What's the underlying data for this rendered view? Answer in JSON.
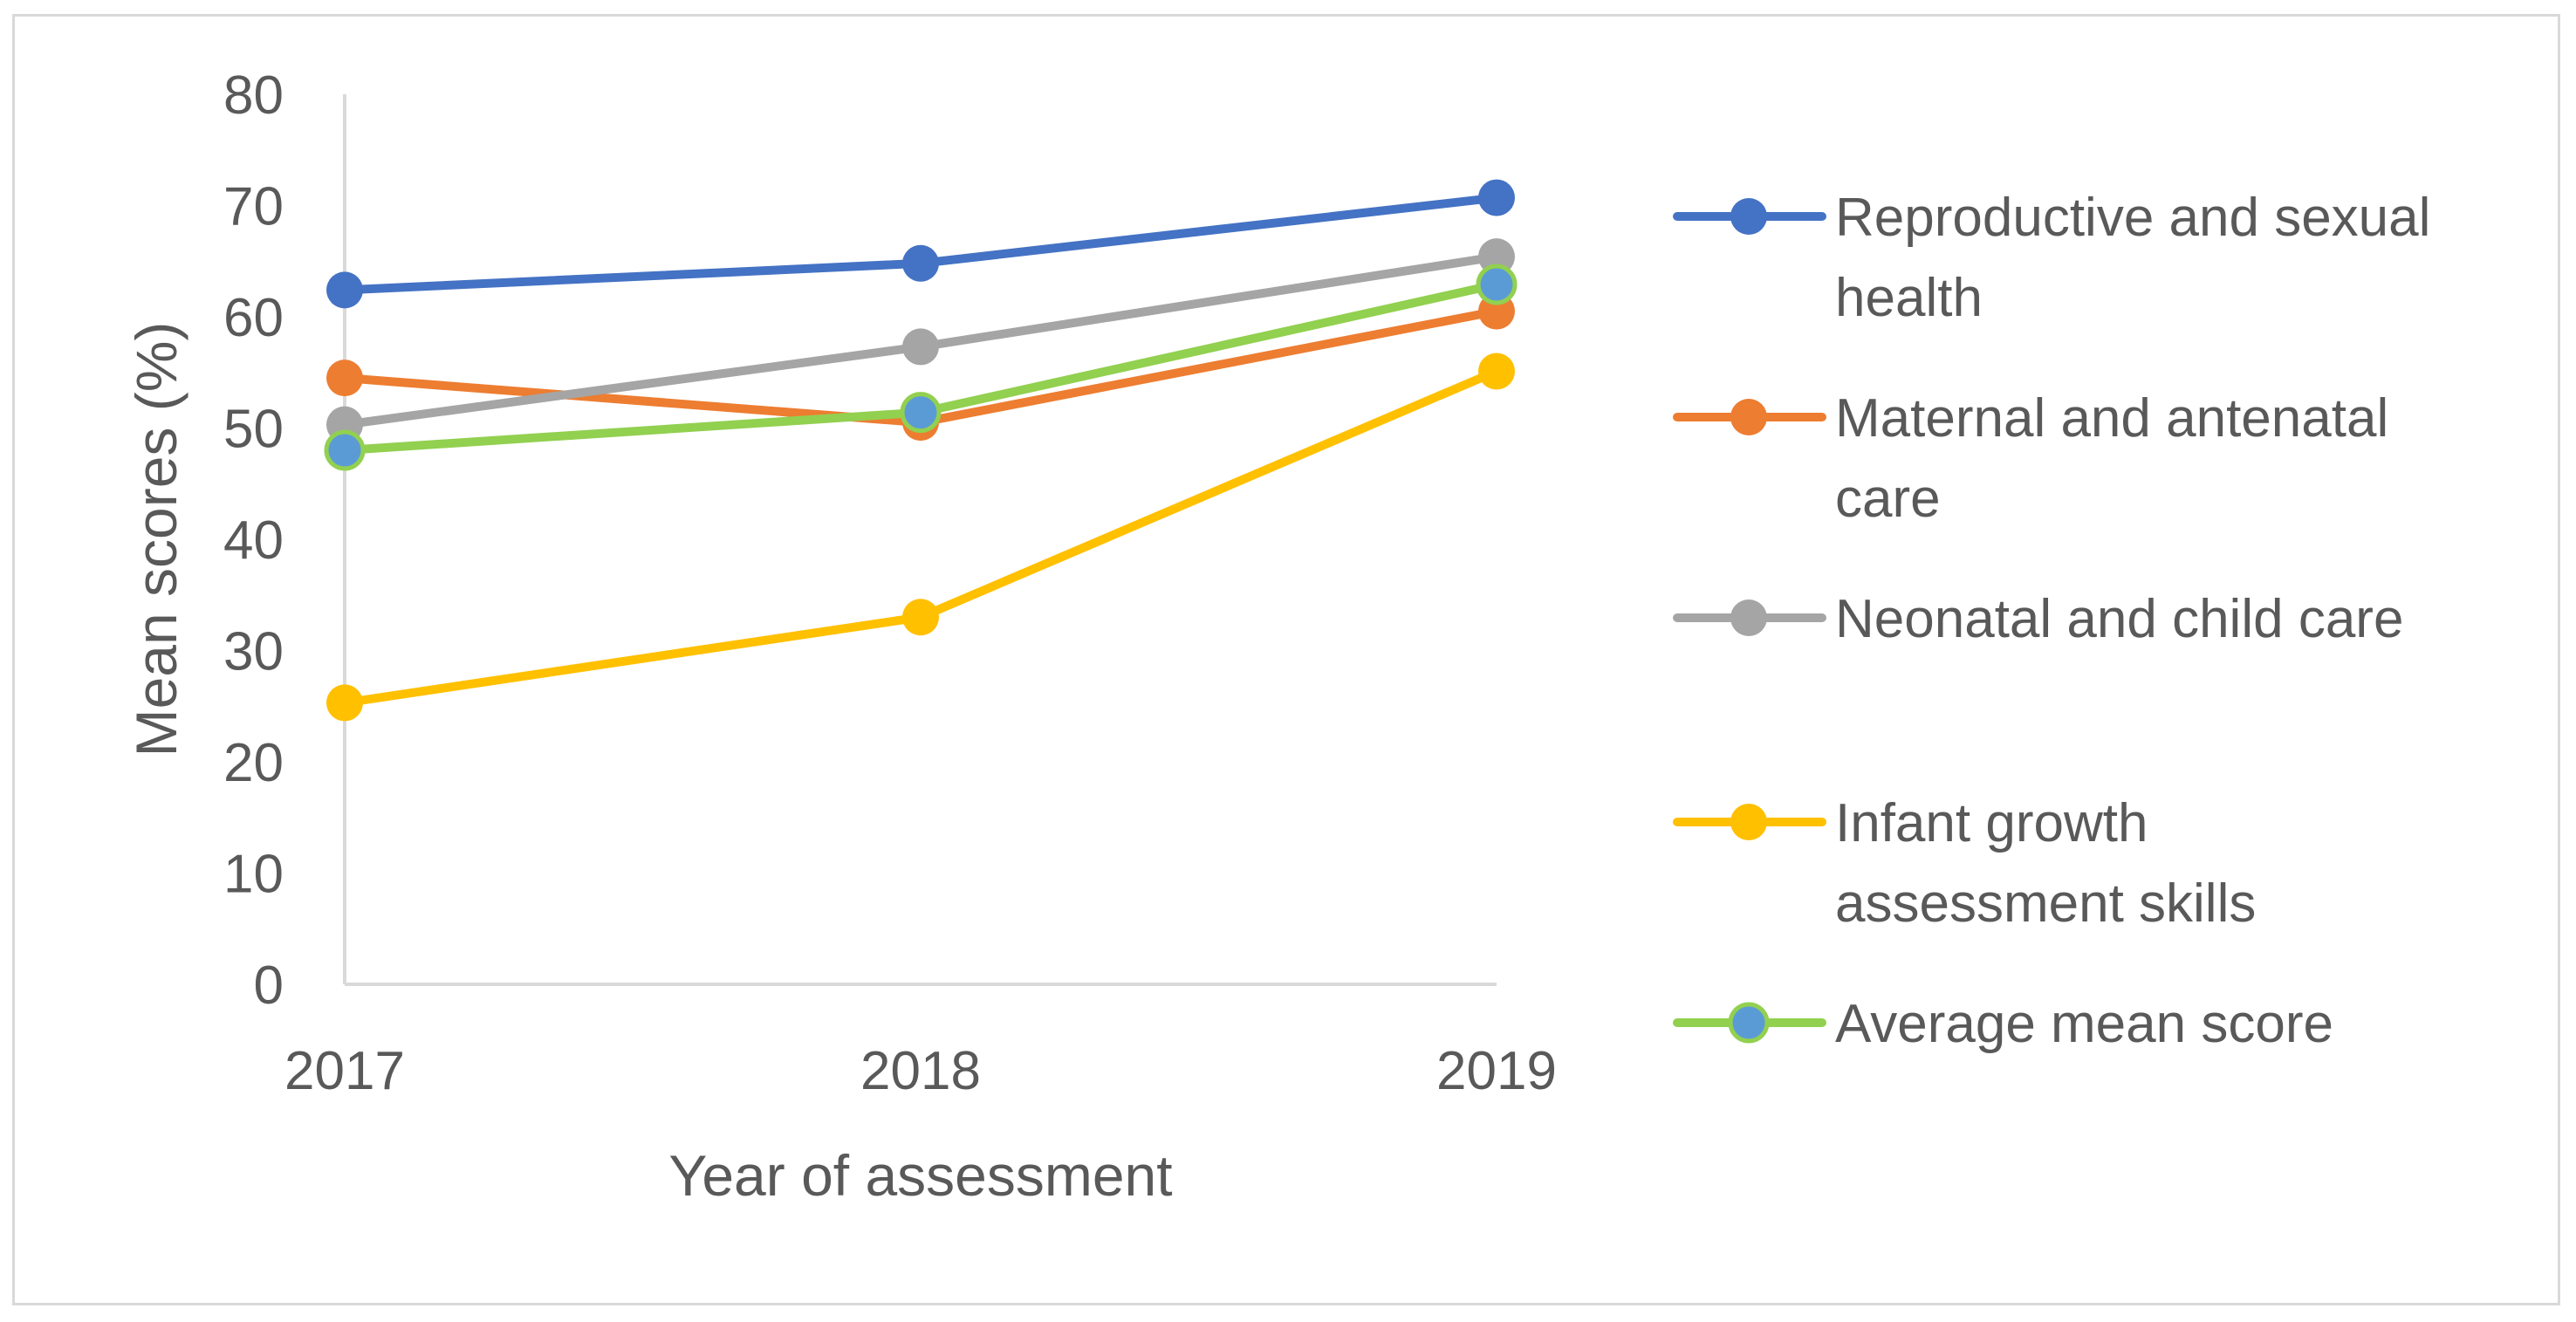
{
  "chart_data": {
    "type": "line",
    "title": "",
    "xlabel": "Year of assessment",
    "ylabel": "Mean scores (%)",
    "ylim": [
      0,
      80
    ],
    "yticks": [
      "0",
      "10",
      "20",
      "30",
      "40",
      "50",
      "60",
      "70",
      "80"
    ],
    "categories": [
      "2017",
      "2018",
      "2019"
    ],
    "grid": false,
    "legend_position": "right",
    "series": [
      {
        "name": "Reproductive and sexual health",
        "legend_lines": [
          "Reproductive and sexual",
          "health"
        ],
        "color": "#4472C4",
        "marker_color": "#4472C4",
        "values": [
          62.4,
          64.8,
          70.7
        ]
      },
      {
        "name": "Maternal and antenatal care",
        "legend_lines": [
          "Maternal and antenatal",
          "care"
        ],
        "color": "#ED7D31",
        "marker_color": "#ED7D31",
        "values": [
          54.5,
          50.5,
          60.5
        ]
      },
      {
        "name": "Neonatal and child care",
        "legend_lines": [
          "Neonatal and child care"
        ],
        "color": "#A5A5A5",
        "marker_color": "#A5A5A5",
        "values": [
          50.3,
          57.3,
          65.4
        ]
      },
      {
        "name": "Infant growth assessment skills",
        "legend_lines": [
          "Infant growth",
          "assessment skills"
        ],
        "color": "#FFC000",
        "marker_color": "#FFC000",
        "values": [
          25.3,
          33.0,
          55.1
        ]
      },
      {
        "name": "Average mean score",
        "legend_lines": [
          "Average mean score"
        ],
        "color": "#92D050",
        "marker_color": "#5B9BD5",
        "values": [
          48.0,
          51.4,
          62.9
        ]
      }
    ]
  }
}
